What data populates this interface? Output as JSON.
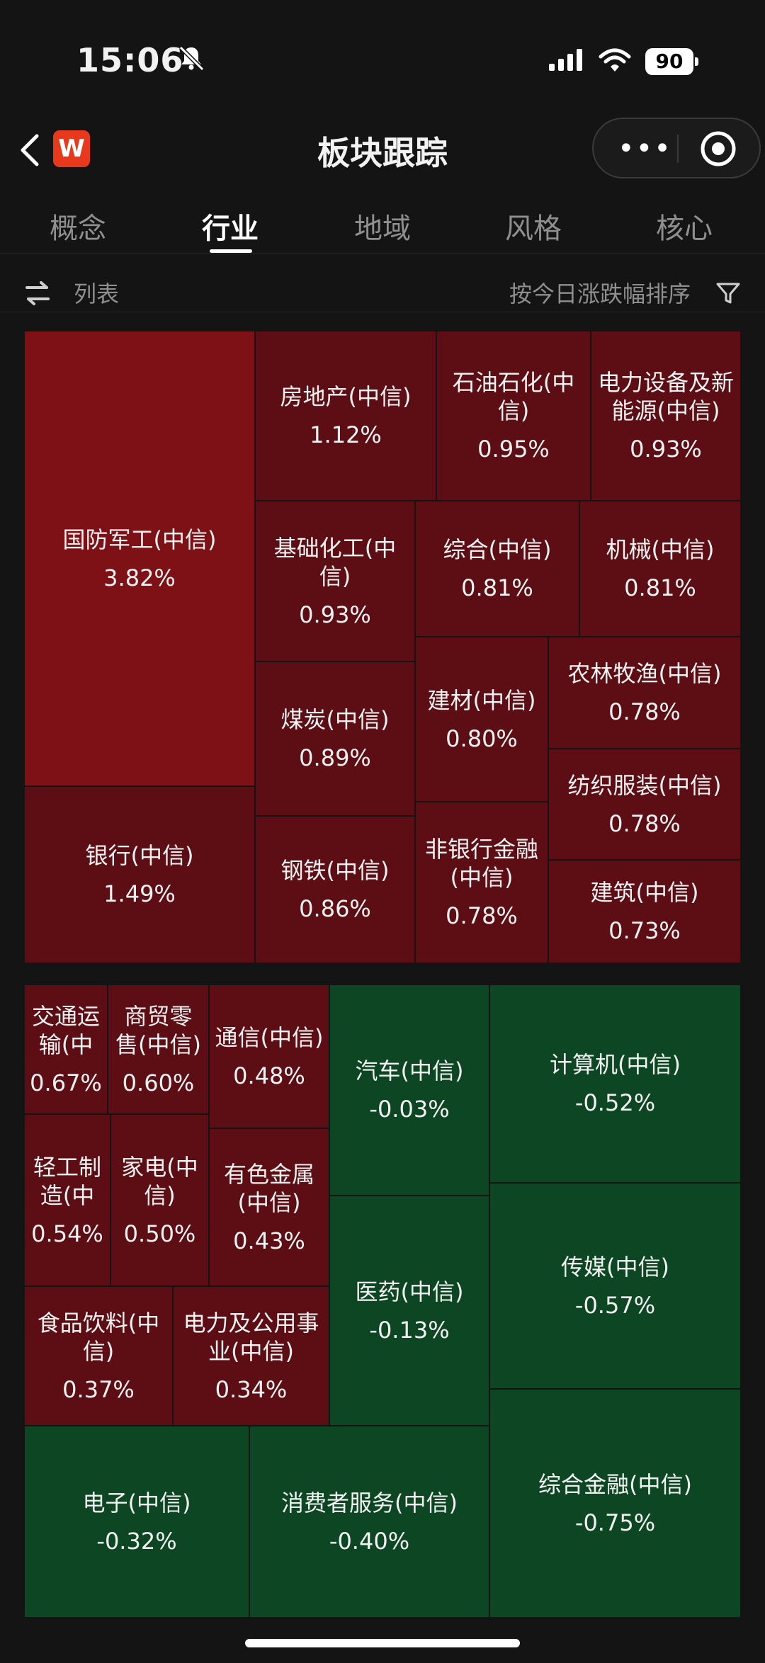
{
  "status_bar": {
    "time": "15:06",
    "battery": "90"
  },
  "nav": {
    "app_logo": "W",
    "title": "板块跟踪",
    "menu_dots": "•••"
  },
  "tabs": [
    "概念",
    "行业",
    "地域",
    "风格",
    "核心"
  ],
  "active_tab": "行业",
  "toolbar": {
    "view_label": "列表",
    "sort_label": "按今日涨跌幅排序"
  },
  "colors": {
    "up_strong": "#7d1116",
    "up": "#5c0e14",
    "down": "#0d4623",
    "background": "#141414"
  },
  "sectors": [
    {
      "name": "国防军工(中信)",
      "change": "3.82%",
      "trend": "up"
    },
    {
      "name": "银行(中信)",
      "change": "1.49%",
      "trend": "up"
    },
    {
      "name": "房地产(中信)",
      "change": "1.12%",
      "trend": "up"
    },
    {
      "name": "石油石化(中信)",
      "change": "0.95%",
      "trend": "up"
    },
    {
      "name": "电力设备及新能源(中信)",
      "change": "0.93%",
      "trend": "up"
    },
    {
      "name": "基础化工(中信)",
      "change": "0.93%",
      "trend": "up"
    },
    {
      "name": "综合(中信)",
      "change": "0.81%",
      "trend": "up"
    },
    {
      "name": "机械(中信)",
      "change": "0.81%",
      "trend": "up"
    },
    {
      "name": "煤炭(中信)",
      "change": "0.89%",
      "trend": "up"
    },
    {
      "name": "建材(中信)",
      "change": "0.80%",
      "trend": "up"
    },
    {
      "name": "农林牧渔(中信)",
      "change": "0.78%",
      "trend": "up"
    },
    {
      "name": "纺织服装(中信)",
      "change": "0.78%",
      "trend": "up"
    },
    {
      "name": "钢铁(中信)",
      "change": "0.86%",
      "trend": "up"
    },
    {
      "name": "非银行金融(中信)",
      "change": "0.78%",
      "trend": "up"
    },
    {
      "name": "建筑(中信)",
      "change": "0.73%",
      "trend": "up"
    },
    {
      "name": "交通运输(中",
      "change": "0.67%",
      "trend": "up"
    },
    {
      "name": "商贸零售(中信)",
      "change": "0.60%",
      "trend": "up"
    },
    {
      "name": "通信(中信)",
      "change": "0.48%",
      "trend": "up"
    },
    {
      "name": "轻工制造(中",
      "change": "0.54%",
      "trend": "up"
    },
    {
      "name": "家电(中信)",
      "change": "0.50%",
      "trend": "up"
    },
    {
      "name": "有色金属(中信)",
      "change": "0.43%",
      "trend": "up"
    },
    {
      "name": "食品饮料(中信)",
      "change": "0.37%",
      "trend": "up"
    },
    {
      "name": "电力及公用事业(中信)",
      "change": "0.34%",
      "trend": "up"
    },
    {
      "name": "汽车(中信)",
      "change": "-0.03%",
      "trend": "down"
    },
    {
      "name": "医药(中信)",
      "change": "-0.13%",
      "trend": "down"
    },
    {
      "name": "计算机(中信)",
      "change": "-0.52%",
      "trend": "down"
    },
    {
      "name": "传媒(中信)",
      "change": "-0.57%",
      "trend": "down"
    },
    {
      "name": "电子(中信)",
      "change": "-0.32%",
      "trend": "down"
    },
    {
      "name": "消费者服务(中信)",
      "change": "-0.40%",
      "trend": "down"
    },
    {
      "name": "综合金融(中信)",
      "change": "-0.75%",
      "trend": "down"
    }
  ]
}
